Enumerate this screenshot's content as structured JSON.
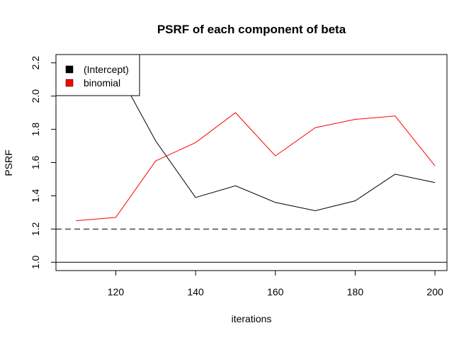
{
  "chart_data": {
    "type": "line",
    "title": "PSRF of each component of beta",
    "xlabel": "iterations",
    "ylabel": "PSRF",
    "x": [
      110,
      120,
      130,
      140,
      150,
      160,
      170,
      180,
      190,
      200
    ],
    "xlim": [
      105,
      203
    ],
    "ylim": [
      0.95,
      2.25
    ],
    "xticks": [
      120,
      140,
      160,
      180,
      200
    ],
    "yticks": [
      1.0,
      1.2,
      1.4,
      1.6,
      1.8,
      2.0,
      2.2
    ],
    "ytick_labels": [
      "1.0",
      "1.2",
      "1.4",
      "1.6",
      "1.8",
      "2.0",
      "2.2"
    ],
    "series": [
      {
        "name": "(Intercept)",
        "color": "#000000",
        "values": [
          2.29,
          2.17,
          1.73,
          1.39,
          1.46,
          1.36,
          1.31,
          1.37,
          1.53,
          1.48
        ]
      },
      {
        "name": "binomial",
        "color": "#ff0000",
        "values": [
          1.25,
          1.27,
          1.61,
          1.72,
          1.9,
          1.64,
          1.81,
          1.86,
          1.88,
          1.58
        ]
      }
    ],
    "reference_lines": [
      {
        "y": 1.0,
        "style": "solid",
        "color": "#000000"
      },
      {
        "y": 1.2,
        "style": "dashed",
        "color": "#000000"
      }
    ],
    "legend": {
      "placement": "top-left"
    },
    "grid": false
  }
}
